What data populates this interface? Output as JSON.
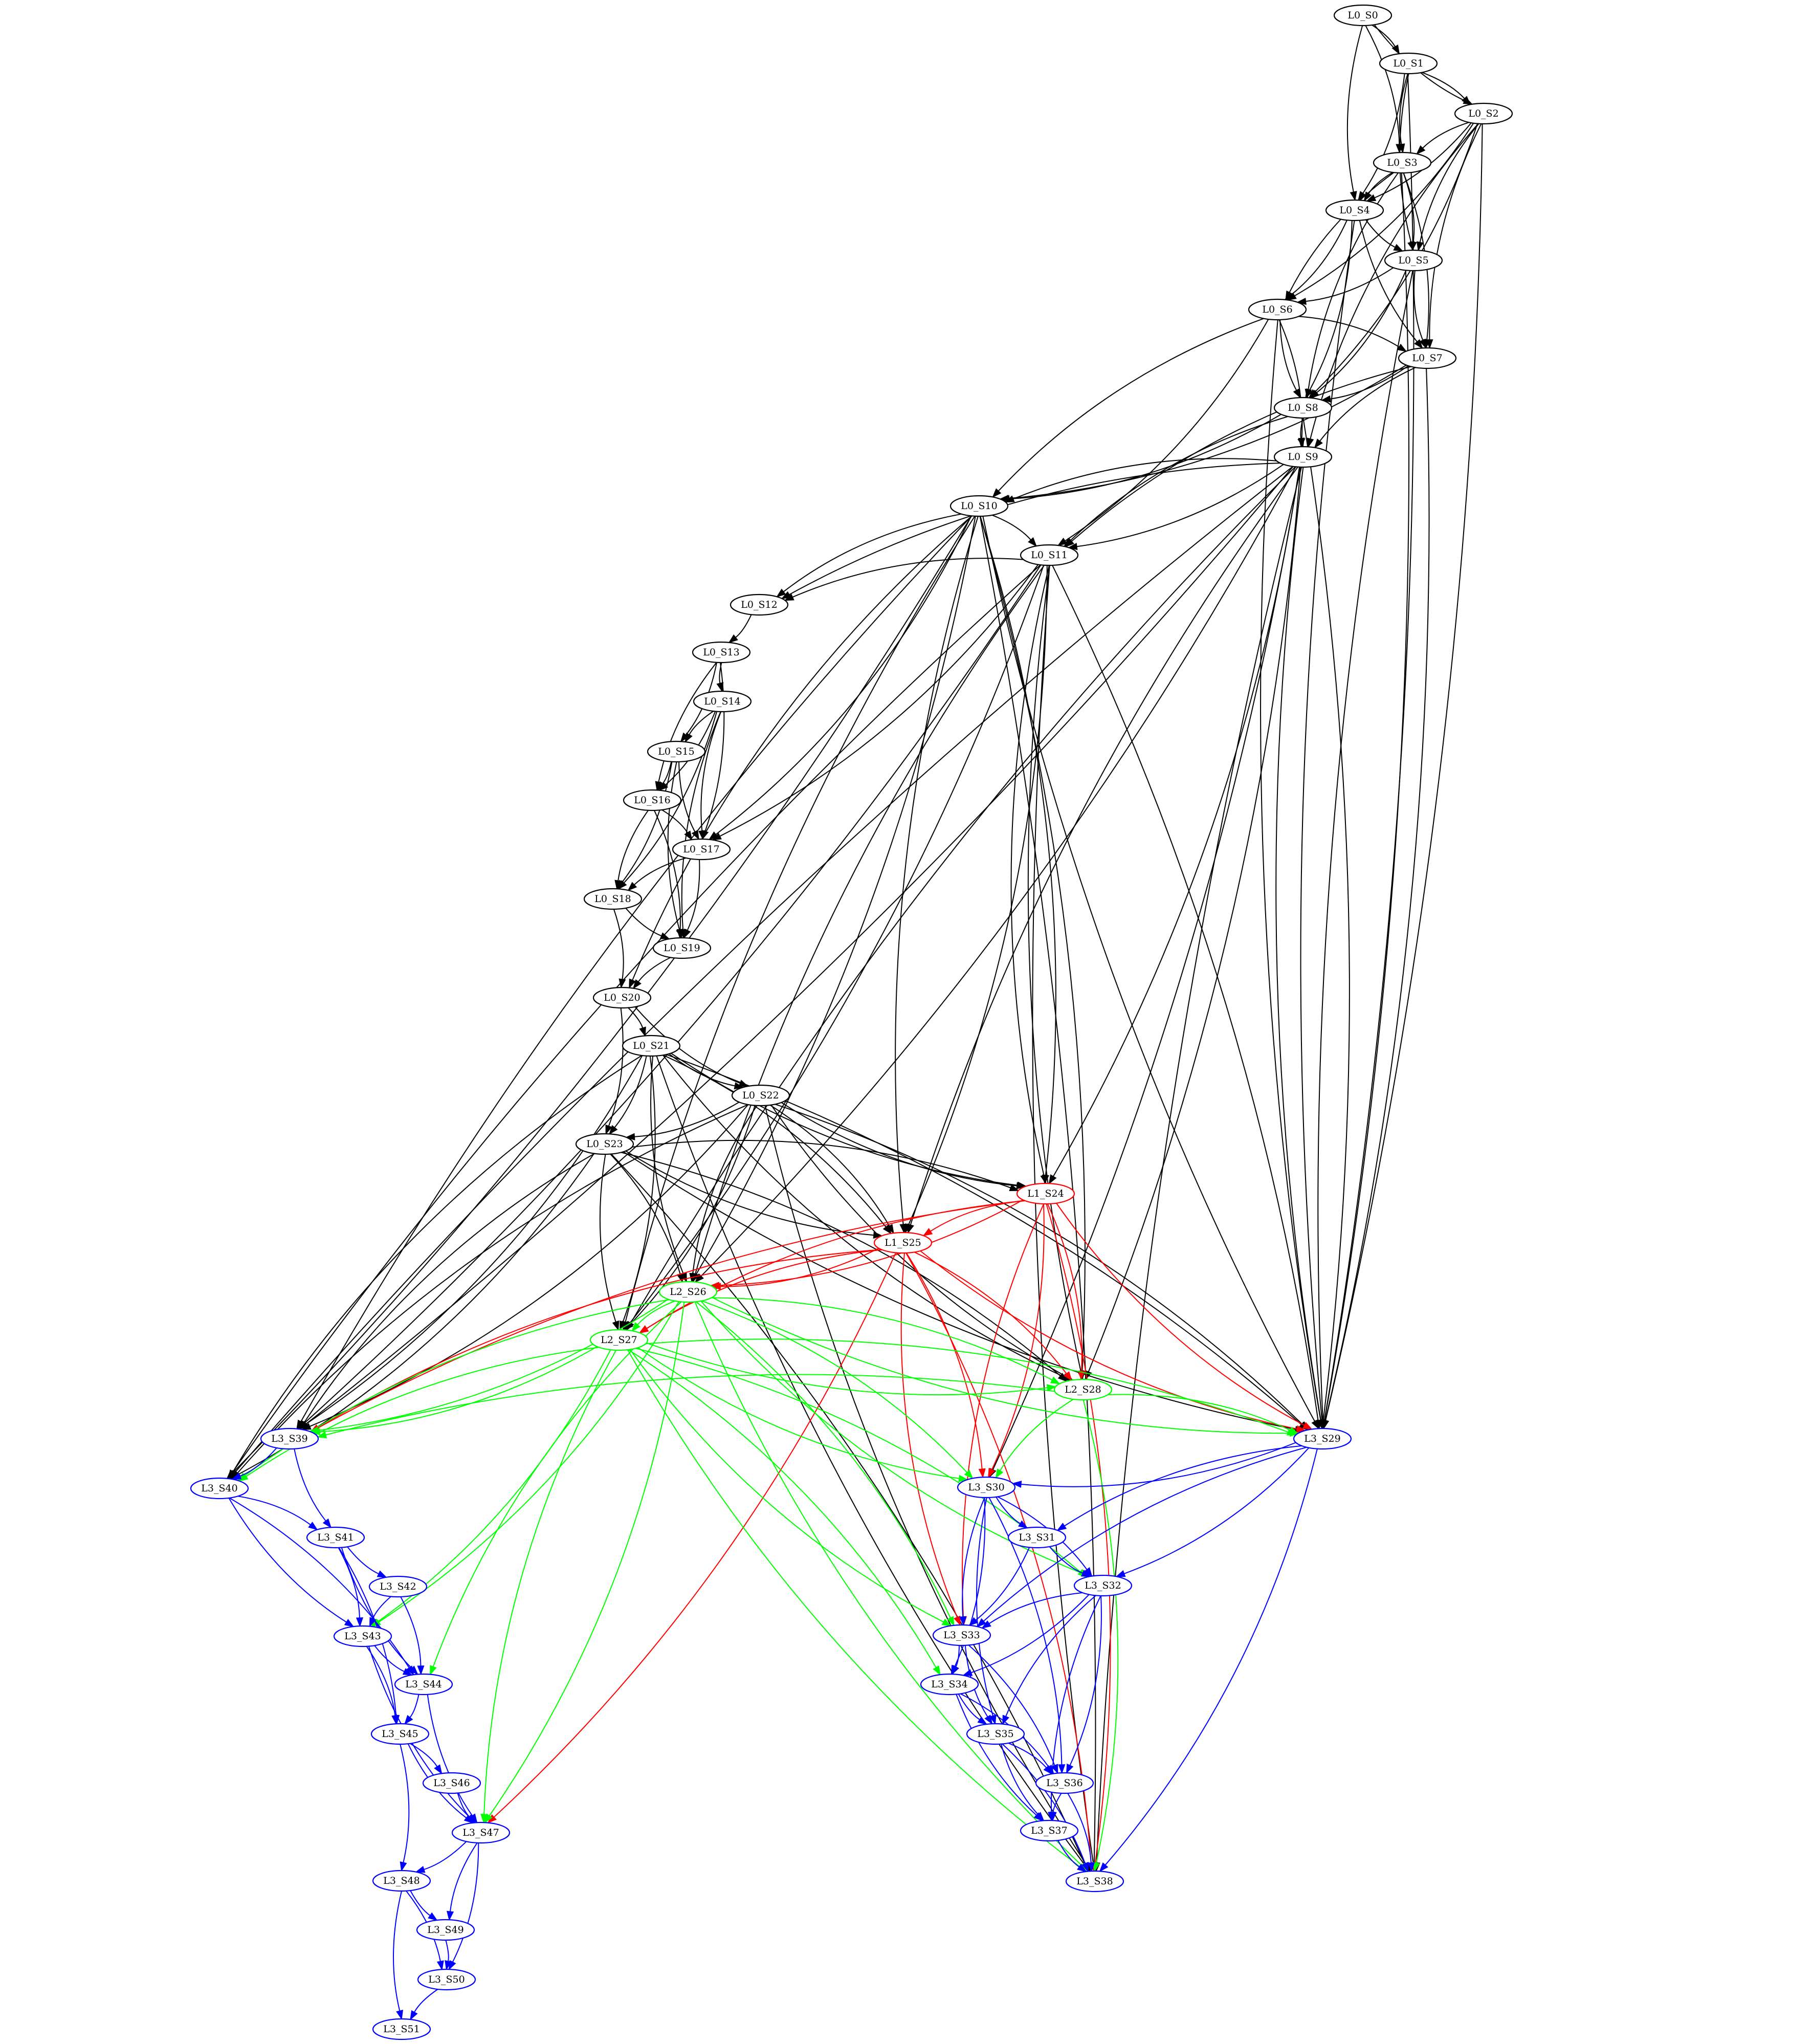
{
  "colors": {
    "L0": "#000000",
    "L1": "#ff0000",
    "L2": "#00ff00",
    "L3": "#0000ff"
  },
  "nodes": [
    {
      "id": "L0_S0",
      "label": "L0_S0",
      "layer": "L0"
    },
    {
      "id": "L0_S1",
      "label": "L0_S1",
      "layer": "L0"
    },
    {
      "id": "L0_S2",
      "label": "L0_S2",
      "layer": "L0"
    },
    {
      "id": "L0_S3",
      "label": "L0_S3",
      "layer": "L0"
    },
    {
      "id": "L0_S4",
      "label": "L0_S4",
      "layer": "L0"
    },
    {
      "id": "L0_S5",
      "label": "L0_S5",
      "layer": "L0"
    },
    {
      "id": "L0_S6",
      "label": "L0_S6",
      "layer": "L0"
    },
    {
      "id": "L0_S7",
      "label": "L0_S7",
      "layer": "L0"
    },
    {
      "id": "L0_S8",
      "label": "L0_S8",
      "layer": "L0"
    },
    {
      "id": "L0_S9",
      "label": "L0_S9",
      "layer": "L0"
    },
    {
      "id": "L0_S10",
      "label": "L0_S10",
      "layer": "L0"
    },
    {
      "id": "L0_S11",
      "label": "L0_S11",
      "layer": "L0"
    },
    {
      "id": "L0_S12",
      "label": "L0_S12",
      "layer": "L0"
    },
    {
      "id": "L0_S13",
      "label": "L0_S13",
      "layer": "L0"
    },
    {
      "id": "L0_S14",
      "label": "L0_S14",
      "layer": "L0"
    },
    {
      "id": "L0_S15",
      "label": "L0_S15",
      "layer": "L0"
    },
    {
      "id": "L0_S16",
      "label": "L0_S16",
      "layer": "L0"
    },
    {
      "id": "L0_S17",
      "label": "L0_S17",
      "layer": "L0"
    },
    {
      "id": "L0_S18",
      "label": "L0_S18",
      "layer": "L0"
    },
    {
      "id": "L0_S19",
      "label": "L0_S19",
      "layer": "L0"
    },
    {
      "id": "L0_S20",
      "label": "L0_S20",
      "layer": "L0"
    },
    {
      "id": "L0_S21",
      "label": "L0_S21",
      "layer": "L0"
    },
    {
      "id": "L0_S22",
      "label": "L0_S22",
      "layer": "L0"
    },
    {
      "id": "L0_S23",
      "label": "L0_S23",
      "layer": "L0"
    },
    {
      "id": "L1_S24",
      "label": "L1_S24",
      "layer": "L1"
    },
    {
      "id": "L1_S25",
      "label": "L1_S25",
      "layer": "L1"
    },
    {
      "id": "L2_S26",
      "label": "L2_S26",
      "layer": "L2"
    },
    {
      "id": "L2_S27",
      "label": "L2_S27",
      "layer": "L2"
    },
    {
      "id": "L2_S28",
      "label": "L2_S28",
      "layer": "L2"
    },
    {
      "id": "L3_S29",
      "label": "L3_S29",
      "layer": "L3"
    },
    {
      "id": "L3_S30",
      "label": "L3_S30",
      "layer": "L3"
    },
    {
      "id": "L3_S31",
      "label": "L3_S31",
      "layer": "L3"
    },
    {
      "id": "L3_S32",
      "label": "L3_S32",
      "layer": "L3"
    },
    {
      "id": "L3_S33",
      "label": "L3_S33",
      "layer": "L3"
    },
    {
      "id": "L3_S34",
      "label": "L3_S34",
      "layer": "L3"
    },
    {
      "id": "L3_S35",
      "label": "L3_S35",
      "layer": "L3"
    },
    {
      "id": "L3_S36",
      "label": "L3_S36",
      "layer": "L3"
    },
    {
      "id": "L3_S37",
      "label": "L3_S37",
      "layer": "L3"
    },
    {
      "id": "L3_S38",
      "label": "L3_S38",
      "layer": "L3"
    },
    {
      "id": "L3_S39",
      "label": "L3_S39",
      "layer": "L3"
    },
    {
      "id": "L3_S40",
      "label": "L3_S40",
      "layer": "L3"
    },
    {
      "id": "L3_S41",
      "label": "L3_S41",
      "layer": "L3"
    },
    {
      "id": "L3_S42",
      "label": "L3_S42",
      "layer": "L3"
    },
    {
      "id": "L3_S43",
      "label": "L3_S43",
      "layer": "L3"
    },
    {
      "id": "L3_S44",
      "label": "L3_S44",
      "layer": "L3"
    },
    {
      "id": "L3_S45",
      "label": "L3_S45",
      "layer": "L3"
    },
    {
      "id": "L3_S46",
      "label": "L3_S46",
      "layer": "L3"
    },
    {
      "id": "L3_S47",
      "label": "L3_S47",
      "layer": "L3"
    },
    {
      "id": "L3_S48",
      "label": "L3_S48",
      "layer": "L3"
    },
    {
      "id": "L3_S49",
      "label": "L3_S49",
      "layer": "L3"
    },
    {
      "id": "L3_S50",
      "label": "L3_S50",
      "layer": "L3"
    },
    {
      "id": "L3_S51",
      "label": "L3_S51",
      "layer": "L3"
    }
  ],
  "edges": [
    [
      "L0_S0",
      "L0_S1",
      "L0"
    ],
    [
      "L0_S0",
      "L0_S2",
      "L0"
    ],
    [
      "L0_S0",
      "L0_S3",
      "L0"
    ],
    [
      "L0_S0",
      "L0_S4",
      "L0"
    ],
    [
      "L0_S1",
      "L0_S2",
      "L0"
    ],
    [
      "L0_S1",
      "L0_S3",
      "L0"
    ],
    [
      "L0_S1",
      "L0_S4",
      "L0"
    ],
    [
      "L0_S1",
      "L0_S5",
      "L0"
    ],
    [
      "L0_S1",
      "L3_S29",
      "L0"
    ],
    [
      "L0_S2",
      "L0_S3",
      "L0"
    ],
    [
      "L0_S2",
      "L0_S4",
      "L0"
    ],
    [
      "L0_S2",
      "L0_S5",
      "L0"
    ],
    [
      "L0_S2",
      "L0_S6",
      "L0"
    ],
    [
      "L0_S2",
      "L0_S7",
      "L0"
    ],
    [
      "L0_S2",
      "L0_S8",
      "L0"
    ],
    [
      "L0_S2",
      "L0_S9",
      "L0"
    ],
    [
      "L0_S2",
      "L3_S29",
      "L0"
    ],
    [
      "L0_S3",
      "L0_S4",
      "L0"
    ],
    [
      "L0_S3",
      "L0_S5",
      "L0"
    ],
    [
      "L0_S3",
      "L0_S6",
      "L0"
    ],
    [
      "L0_S3",
      "L0_S7",
      "L0"
    ],
    [
      "L0_S3",
      "L0_S8",
      "L0"
    ],
    [
      "L0_S3",
      "L3_S29",
      "L0"
    ],
    [
      "L0_S4",
      "L0_S5",
      "L0"
    ],
    [
      "L0_S4",
      "L0_S6",
      "L0"
    ],
    [
      "L0_S4",
      "L0_S7",
      "L0"
    ],
    [
      "L0_S4",
      "L0_S8",
      "L0"
    ],
    [
      "L0_S4",
      "L3_S29",
      "L0"
    ],
    [
      "L0_S5",
      "L0_S6",
      "L0"
    ],
    [
      "L0_S5",
      "L0_S7",
      "L0"
    ],
    [
      "L0_S5",
      "L0_S8",
      "L0"
    ],
    [
      "L0_S5",
      "L3_S29",
      "L0"
    ],
    [
      "L0_S6",
      "L0_S7",
      "L0"
    ],
    [
      "L0_S6",
      "L0_S8",
      "L0"
    ],
    [
      "L0_S6",
      "L0_S9",
      "L0"
    ],
    [
      "L0_S6",
      "L0_S10",
      "L0"
    ],
    [
      "L0_S6",
      "L0_S11",
      "L0"
    ],
    [
      "L0_S6",
      "L3_S29",
      "L0"
    ],
    [
      "L0_S7",
      "L0_S8",
      "L0"
    ],
    [
      "L0_S7",
      "L0_S9",
      "L0"
    ],
    [
      "L0_S7",
      "L0_S10",
      "L0"
    ],
    [
      "L0_S7",
      "L0_S11",
      "L0"
    ],
    [
      "L0_S7",
      "L3_S29",
      "L0"
    ],
    [
      "L0_S8",
      "L0_S9",
      "L0"
    ],
    [
      "L0_S8",
      "L0_S10",
      "L0"
    ],
    [
      "L0_S8",
      "L0_S11",
      "L0"
    ],
    [
      "L0_S8",
      "L3_S29",
      "L0"
    ],
    [
      "L0_S9",
      "L0_S10",
      "L0"
    ],
    [
      "L0_S9",
      "L0_S11",
      "L0"
    ],
    [
      "L0_S9",
      "L0_S12",
      "L0"
    ],
    [
      "L0_S9",
      "L1_S24",
      "L0"
    ],
    [
      "L0_S9",
      "L1_S25",
      "L0"
    ],
    [
      "L0_S9",
      "L2_S26",
      "L0"
    ],
    [
      "L0_S9",
      "L2_S27",
      "L0"
    ],
    [
      "L0_S9",
      "L2_S28",
      "L0"
    ],
    [
      "L0_S9",
      "L3_S29",
      "L0"
    ],
    [
      "L0_S9",
      "L3_S30",
      "L0"
    ],
    [
      "L0_S9",
      "L3_S38",
      "L0"
    ],
    [
      "L0_S9",
      "L3_S39",
      "L0"
    ],
    [
      "L0_S9",
      "L3_S40",
      "L0"
    ],
    [
      "L0_S10",
      "L0_S11",
      "L0"
    ],
    [
      "L0_S10",
      "L0_S12",
      "L0"
    ],
    [
      "L0_S10",
      "L0_S17",
      "L0"
    ],
    [
      "L0_S10",
      "L0_S20",
      "L0"
    ],
    [
      "L0_S10",
      "L1_S24",
      "L0"
    ],
    [
      "L0_S10",
      "L1_S25",
      "L0"
    ],
    [
      "L0_S10",
      "L2_S26",
      "L0"
    ],
    [
      "L0_S10",
      "L2_S27",
      "L0"
    ],
    [
      "L0_S10",
      "L2_S28",
      "L0"
    ],
    [
      "L0_S10",
      "L3_S29",
      "L0"
    ],
    [
      "L0_S10",
      "L3_S38",
      "L0"
    ],
    [
      "L0_S10",
      "L3_S39",
      "L0"
    ],
    [
      "L0_S10",
      "L3_S40",
      "L0"
    ],
    [
      "L0_S11",
      "L0_S12",
      "L0"
    ],
    [
      "L0_S11",
      "L0_S17",
      "L0"
    ],
    [
      "L0_S11",
      "L1_S24",
      "L0"
    ],
    [
      "L0_S11",
      "L1_S25",
      "L0"
    ],
    [
      "L0_S11",
      "L2_S26",
      "L0"
    ],
    [
      "L0_S11",
      "L2_S27",
      "L0"
    ],
    [
      "L0_S11",
      "L2_S28",
      "L0"
    ],
    [
      "L0_S11",
      "L3_S29",
      "L0"
    ],
    [
      "L0_S11",
      "L3_S38",
      "L0"
    ],
    [
      "L0_S11",
      "L3_S39",
      "L0"
    ],
    [
      "L0_S11",
      "L3_S40",
      "L0"
    ],
    [
      "L0_S12",
      "L0_S13",
      "L0"
    ],
    [
      "L0_S13",
      "L0_S14",
      "L0"
    ],
    [
      "L0_S13",
      "L0_S15",
      "L0"
    ],
    [
      "L0_S13",
      "L0_S16",
      "L0"
    ],
    [
      "L0_S13",
      "L0_S17",
      "L0"
    ],
    [
      "L0_S14",
      "L0_S15",
      "L0"
    ],
    [
      "L0_S14",
      "L0_S16",
      "L0"
    ],
    [
      "L0_S14",
      "L0_S17",
      "L0"
    ],
    [
      "L0_S14",
      "L0_S18",
      "L0"
    ],
    [
      "L0_S14",
      "L0_S19",
      "L0"
    ],
    [
      "L0_S15",
      "L0_S16",
      "L0"
    ],
    [
      "L0_S15",
      "L0_S17",
      "L0"
    ],
    [
      "L0_S15",
      "L0_S18",
      "L0"
    ],
    [
      "L0_S15",
      "L0_S19",
      "L0"
    ],
    [
      "L0_S16",
      "L0_S17",
      "L0"
    ],
    [
      "L0_S16",
      "L0_S18",
      "L0"
    ],
    [
      "L0_S16",
      "L0_S19",
      "L0"
    ],
    [
      "L0_S17",
      "L0_S18",
      "L0"
    ],
    [
      "L0_S17",
      "L0_S19",
      "L0"
    ],
    [
      "L0_S18",
      "L0_S19",
      "L0"
    ],
    [
      "L0_S18",
      "L0_S20",
      "L0"
    ],
    [
      "L0_S19",
      "L0_S20",
      "L0"
    ],
    [
      "L0_S20",
      "L0_S21",
      "L0"
    ],
    [
      "L0_S20",
      "L0_S22",
      "L0"
    ],
    [
      "L0_S20",
      "L0_S23",
      "L0"
    ],
    [
      "L0_S21",
      "L0_S22",
      "L0"
    ],
    [
      "L0_S21",
      "L0_S23",
      "L0"
    ],
    [
      "L0_S21",
      "L1_S24",
      "L0"
    ],
    [
      "L0_S21",
      "L1_S25",
      "L0"
    ],
    [
      "L0_S21",
      "L2_S26",
      "L0"
    ],
    [
      "L0_S21",
      "L2_S27",
      "L0"
    ],
    [
      "L0_S21",
      "L2_S28",
      "L0"
    ],
    [
      "L0_S21",
      "L3_S29",
      "L0"
    ],
    [
      "L0_S21",
      "L3_S38",
      "L0"
    ],
    [
      "L0_S21",
      "L3_S39",
      "L0"
    ],
    [
      "L0_S21",
      "L3_S40",
      "L0"
    ],
    [
      "L0_S22",
      "L0_S23",
      "L0"
    ],
    [
      "L0_S22",
      "L1_S24",
      "L0"
    ],
    [
      "L0_S22",
      "L1_S25",
      "L0"
    ],
    [
      "L0_S22",
      "L2_S26",
      "L0"
    ],
    [
      "L0_S22",
      "L2_S27",
      "L0"
    ],
    [
      "L0_S22",
      "L2_S28",
      "L0"
    ],
    [
      "L0_S22",
      "L3_S29",
      "L0"
    ],
    [
      "L0_S22",
      "L3_S38",
      "L0"
    ],
    [
      "L0_S22",
      "L3_S39",
      "L0"
    ],
    [
      "L0_S22",
      "L3_S40",
      "L0"
    ],
    [
      "L0_S23",
      "L1_S24",
      "L0"
    ],
    [
      "L0_S23",
      "L1_S25",
      "L0"
    ],
    [
      "L0_S23",
      "L2_S26",
      "L0"
    ],
    [
      "L0_S23",
      "L2_S27",
      "L0"
    ],
    [
      "L0_S23",
      "L2_S28",
      "L0"
    ],
    [
      "L0_S23",
      "L3_S29",
      "L0"
    ],
    [
      "L0_S23",
      "L3_S38",
      "L0"
    ],
    [
      "L0_S23",
      "L3_S39",
      "L0"
    ],
    [
      "L0_S23",
      "L3_S40",
      "L0"
    ],
    [
      "L1_S24",
      "L1_S25",
      "L1"
    ],
    [
      "L1_S24",
      "L2_S26",
      "L1"
    ],
    [
      "L1_S24",
      "L2_S27",
      "L1"
    ],
    [
      "L1_S24",
      "L2_S28",
      "L1"
    ],
    [
      "L1_S24",
      "L3_S29",
      "L1"
    ],
    [
      "L1_S24",
      "L3_S30",
      "L1"
    ],
    [
      "L1_S24",
      "L3_S33",
      "L1"
    ],
    [
      "L1_S24",
      "L3_S38",
      "L1"
    ],
    [
      "L1_S24",
      "L3_S39",
      "L1"
    ],
    [
      "L1_S25",
      "L2_S26",
      "L1"
    ],
    [
      "L1_S25",
      "L2_S27",
      "L1"
    ],
    [
      "L1_S25",
      "L2_S28",
      "L1"
    ],
    [
      "L1_S25",
      "L3_S29",
      "L1"
    ],
    [
      "L1_S25",
      "L3_S30",
      "L1"
    ],
    [
      "L1_S25",
      "L3_S33",
      "L1"
    ],
    [
      "L1_S25",
      "L3_S38",
      "L1"
    ],
    [
      "L1_S25",
      "L3_S39",
      "L1"
    ],
    [
      "L1_S25",
      "L3_S47",
      "L1"
    ],
    [
      "L2_S26",
      "L2_S27",
      "L2"
    ],
    [
      "L2_S26",
      "L2_S28",
      "L2"
    ],
    [
      "L2_S26",
      "L3_S29",
      "L2"
    ],
    [
      "L2_S26",
      "L3_S30",
      "L2"
    ],
    [
      "L2_S26",
      "L3_S32",
      "L2"
    ],
    [
      "L2_S26",
      "L3_S33",
      "L2"
    ],
    [
      "L2_S26",
      "L3_S38",
      "L2"
    ],
    [
      "L2_S26",
      "L3_S39",
      "L2"
    ],
    [
      "L2_S26",
      "L3_S40",
      "L2"
    ],
    [
      "L2_S26",
      "L3_S43",
      "L2"
    ],
    [
      "L2_S26",
      "L3_S44",
      "L2"
    ],
    [
      "L2_S26",
      "L3_S47",
      "L2"
    ],
    [
      "L2_S27",
      "L2_S28",
      "L2"
    ],
    [
      "L2_S27",
      "L3_S29",
      "L2"
    ],
    [
      "L2_S27",
      "L3_S30",
      "L2"
    ],
    [
      "L2_S27",
      "L3_S32",
      "L2"
    ],
    [
      "L2_S27",
      "L3_S33",
      "L2"
    ],
    [
      "L2_S27",
      "L3_S34",
      "L2"
    ],
    [
      "L2_S27",
      "L3_S38",
      "L2"
    ],
    [
      "L2_S27",
      "L3_S39",
      "L2"
    ],
    [
      "L2_S27",
      "L3_S40",
      "L2"
    ],
    [
      "L2_S27",
      "L3_S43",
      "L2"
    ],
    [
      "L2_S27",
      "L3_S47",
      "L2"
    ],
    [
      "L2_S28",
      "L3_S29",
      "L2"
    ],
    [
      "L2_S28",
      "L3_S30",
      "L2"
    ],
    [
      "L2_S28",
      "L3_S38",
      "L2"
    ],
    [
      "L2_S28",
      "L3_S39",
      "L2"
    ],
    [
      "L3_S29",
      "L3_S30",
      "L3"
    ],
    [
      "L3_S29",
      "L3_S31",
      "L3"
    ],
    [
      "L3_S29",
      "L3_S32",
      "L3"
    ],
    [
      "L3_S29",
      "L3_S33",
      "L3"
    ],
    [
      "L3_S29",
      "L3_S38",
      "L3"
    ],
    [
      "L3_S30",
      "L3_S31",
      "L3"
    ],
    [
      "L3_S30",
      "L3_S32",
      "L3"
    ],
    [
      "L3_S30",
      "L3_S33",
      "L3"
    ],
    [
      "L3_S30",
      "L3_S34",
      "L3"
    ],
    [
      "L3_S30",
      "L3_S35",
      "L3"
    ],
    [
      "L3_S30",
      "L3_S36",
      "L3"
    ],
    [
      "L3_S31",
      "L3_S32",
      "L3"
    ],
    [
      "L3_S31",
      "L3_S33",
      "L3"
    ],
    [
      "L3_S32",
      "L3_S33",
      "L3"
    ],
    [
      "L3_S32",
      "L3_S34",
      "L3"
    ],
    [
      "L3_S32",
      "L3_S35",
      "L3"
    ],
    [
      "L3_S32",
      "L3_S36",
      "L3"
    ],
    [
      "L3_S32",
      "L3_S37",
      "L3"
    ],
    [
      "L3_S33",
      "L3_S34",
      "L3"
    ],
    [
      "L3_S33",
      "L3_S35",
      "L3"
    ],
    [
      "L3_S33",
      "L3_S36",
      "L3"
    ],
    [
      "L3_S34",
      "L3_S35",
      "L3"
    ],
    [
      "L3_S34",
      "L3_S36",
      "L3"
    ],
    [
      "L3_S34",
      "L3_S37",
      "L3"
    ],
    [
      "L3_S35",
      "L3_S36",
      "L3"
    ],
    [
      "L3_S35",
      "L3_S37",
      "L3"
    ],
    [
      "L3_S35",
      "L3_S38",
      "L3"
    ],
    [
      "L3_S36",
      "L3_S37",
      "L3"
    ],
    [
      "L3_S36",
      "L3_S38",
      "L3"
    ],
    [
      "L3_S37",
      "L3_S38",
      "L3"
    ],
    [
      "L3_S39",
      "L3_S40",
      "L3"
    ],
    [
      "L3_S39",
      "L3_S41",
      "L3"
    ],
    [
      "L3_S40",
      "L3_S41",
      "L3"
    ],
    [
      "L3_S40",
      "L3_S43",
      "L3"
    ],
    [
      "L3_S40",
      "L3_S44",
      "L3"
    ],
    [
      "L3_S41",
      "L3_S42",
      "L3"
    ],
    [
      "L3_S41",
      "L3_S43",
      "L3"
    ],
    [
      "L3_S41",
      "L3_S44",
      "L3"
    ],
    [
      "L3_S41",
      "L3_S45",
      "L3"
    ],
    [
      "L3_S42",
      "L3_S43",
      "L3"
    ],
    [
      "L3_S42",
      "L3_S44",
      "L3"
    ],
    [
      "L3_S43",
      "L3_S44",
      "L3"
    ],
    [
      "L3_S43",
      "L3_S45",
      "L3"
    ],
    [
      "L3_S43",
      "L3_S47",
      "L3"
    ],
    [
      "L3_S44",
      "L3_S45",
      "L3"
    ],
    [
      "L3_S44",
      "L3_S47",
      "L3"
    ],
    [
      "L3_S45",
      "L3_S46",
      "L3"
    ],
    [
      "L3_S45",
      "L3_S47",
      "L3"
    ],
    [
      "L3_S45",
      "L3_S48",
      "L3"
    ],
    [
      "L3_S46",
      "L3_S47",
      "L3"
    ],
    [
      "L3_S47",
      "L3_S48",
      "L3"
    ],
    [
      "L3_S47",
      "L3_S49",
      "L3"
    ],
    [
      "L3_S47",
      "L3_S50",
      "L3"
    ],
    [
      "L3_S48",
      "L3_S49",
      "L3"
    ],
    [
      "L3_S48",
      "L3_S50",
      "L3"
    ],
    [
      "L3_S48",
      "L3_S51",
      "L3"
    ],
    [
      "L3_S49",
      "L3_S50",
      "L3"
    ],
    [
      "L3_S50",
      "L3_S51",
      "L3"
    ]
  ]
}
